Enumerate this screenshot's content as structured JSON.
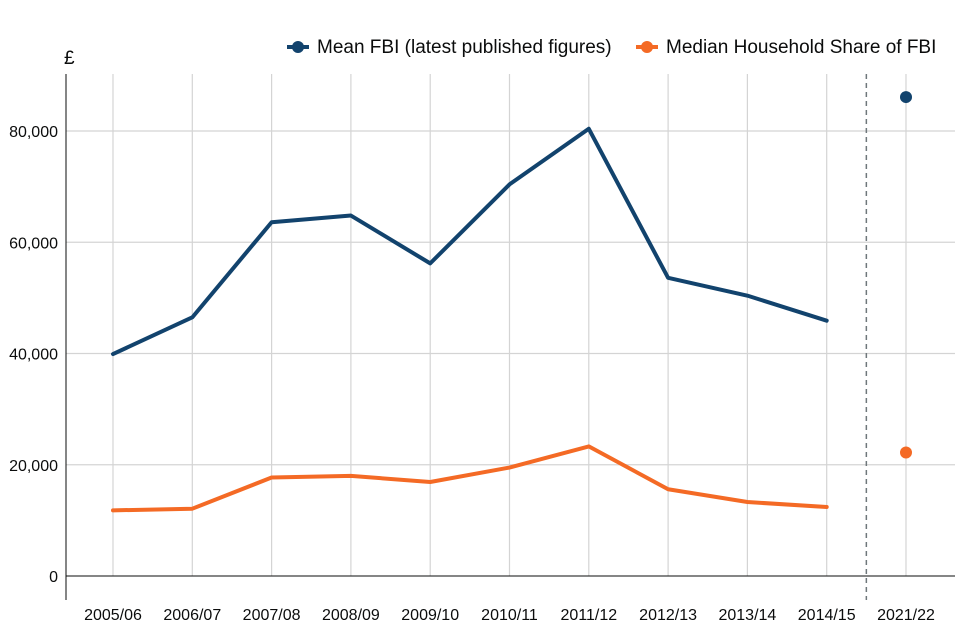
{
  "chart_data": {
    "type": "line",
    "title": "",
    "xlabel": "",
    "ylabel": "£",
    "categories": [
      "2005/06",
      "2006/07",
      "2007/08",
      "2008/09",
      "2009/10",
      "2010/11",
      "2011/12",
      "2012/13",
      "2013/14",
      "2014/15",
      "2021/22"
    ],
    "ylim": [
      0,
      90000
    ],
    "yticks": [
      0,
      20000,
      40000,
      60000,
      80000
    ],
    "ytick_labels": [
      "0",
      "20,000",
      "40,000",
      "60,000",
      "80,000"
    ],
    "grid": true,
    "legend_position": "top-right",
    "break_between": [
      "2014/15",
      "2021/22"
    ],
    "series": [
      {
        "name": "Mean FBI (latest published figures)",
        "color": "#12436d",
        "values": [
          39900,
          46500,
          63600,
          64800,
          56200,
          70400,
          80400,
          53600,
          50400,
          45900,
          86100
        ]
      },
      {
        "name": "Median Household Share of FBI",
        "color": "#f46a25",
        "values": [
          11800,
          12100,
          17700,
          18000,
          16900,
          19500,
          23300,
          15600,
          13300,
          12400,
          22200
        ]
      }
    ]
  }
}
